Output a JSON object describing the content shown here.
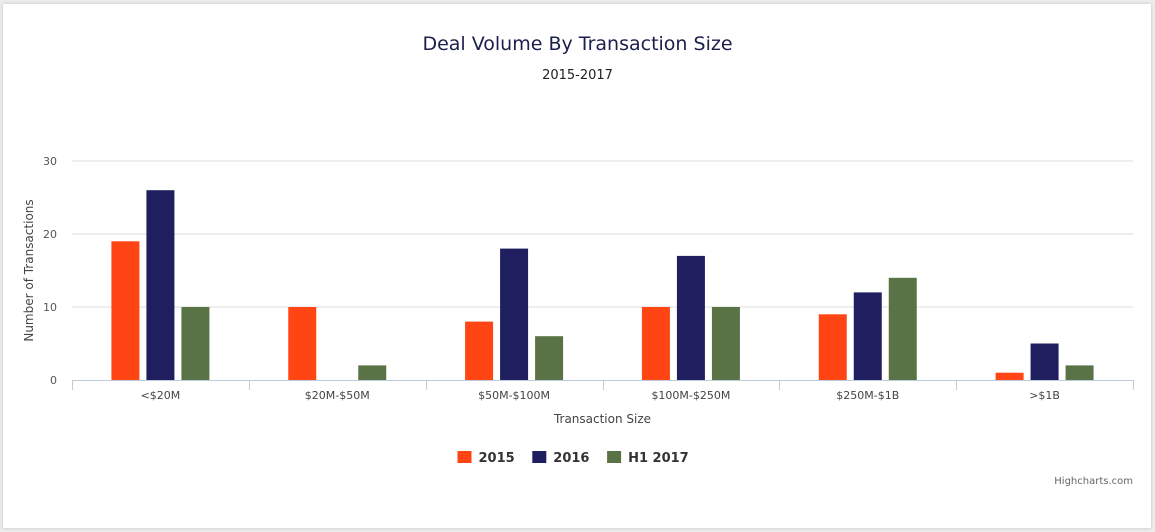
{
  "chart_data": {
    "type": "bar",
    "title": "Deal Volume By Transaction Size",
    "subtitle": "2015-2017",
    "xlabel": "Transaction Size",
    "ylabel": "Number of Transactions",
    "ylim": [
      0,
      30
    ],
    "yticks": [
      0,
      10,
      20,
      30
    ],
    "grid": true,
    "legend_position": "bottom",
    "categories": [
      "<$20M",
      "$20M-$50M",
      "$50M-$100M",
      "$100M-$250M",
      "$250M-$1B",
      ">$1B"
    ],
    "series": [
      {
        "name": "2015",
        "color": "#ff4513",
        "values": [
          19,
          10,
          8,
          10,
          9,
          1
        ]
      },
      {
        "name": "2016",
        "color": "#1f1f5f",
        "values": [
          26,
          0,
          18,
          17,
          12,
          5
        ]
      },
      {
        "name": "H1 2017",
        "color": "#5a7346",
        "values": [
          10,
          2,
          6,
          10,
          14,
          2
        ]
      }
    ],
    "credits": "Highcharts.com"
  }
}
